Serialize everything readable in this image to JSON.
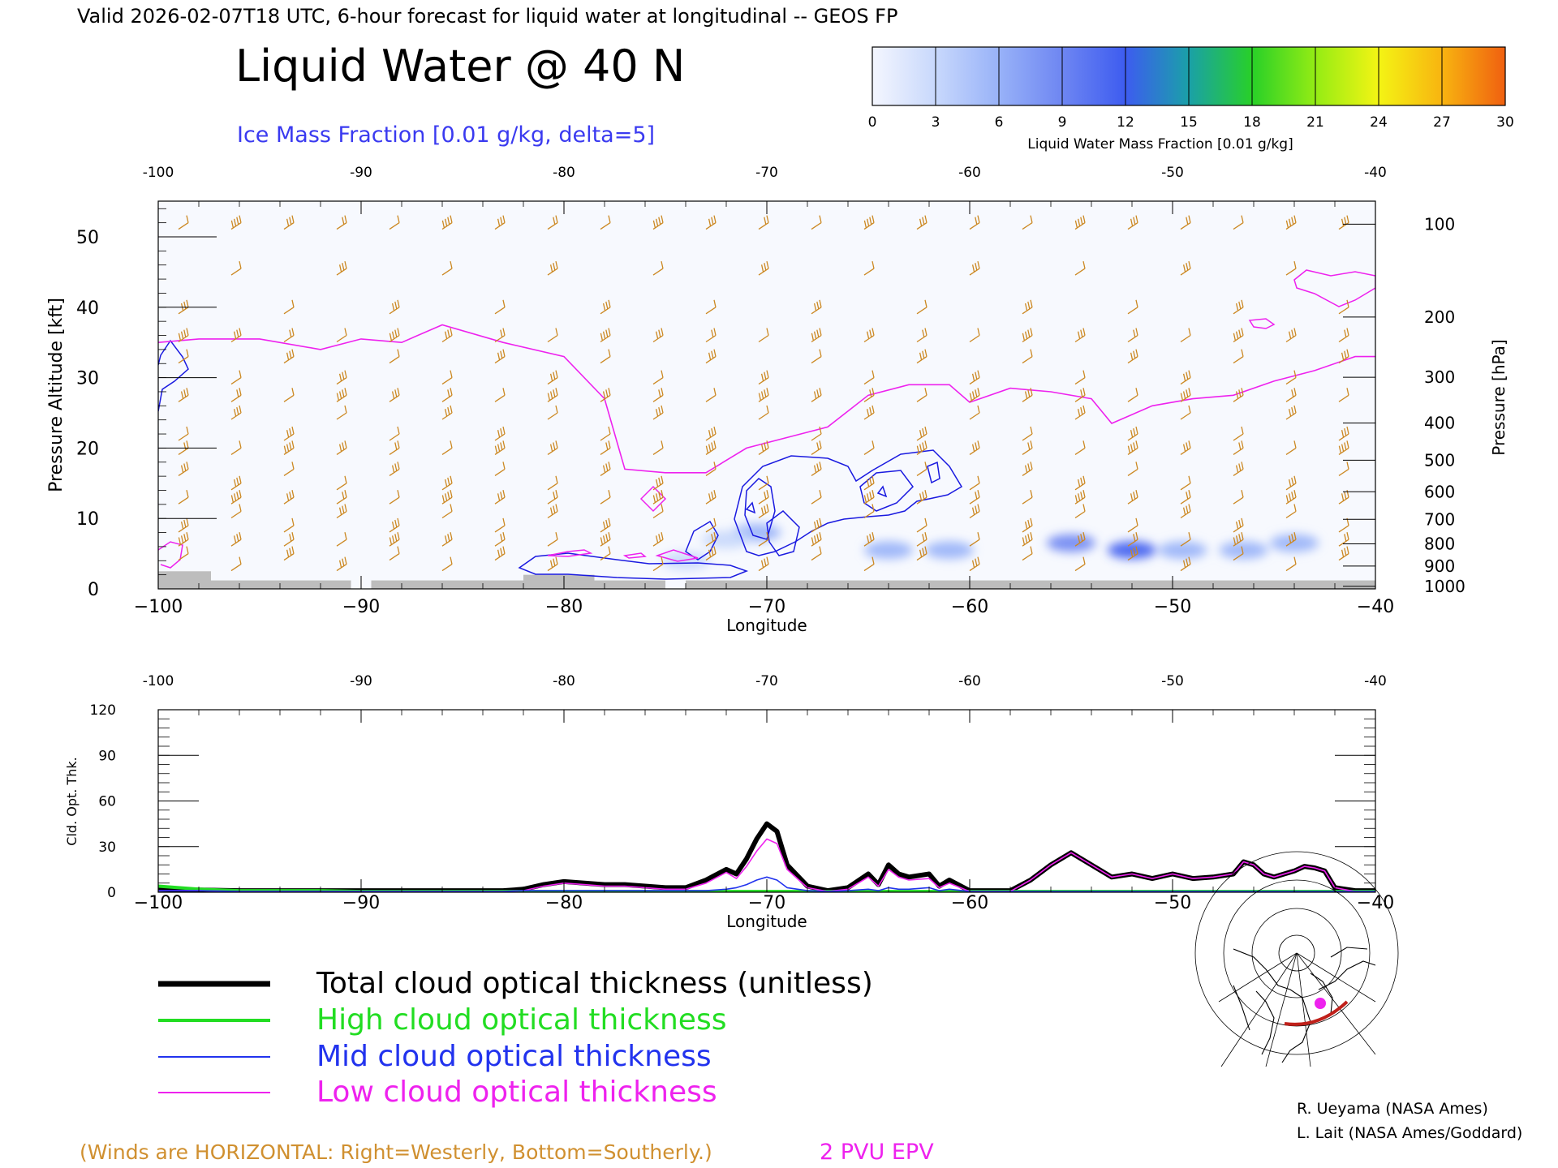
{
  "header": {
    "valid_line": "Valid 2026-02-07T18 UTC, 6-hour forecast for liquid water at longitudinal -- GEOS FP",
    "title": "Liquid Water @ 40 N",
    "subtitle": "Ice Mass Fraction [0.01 g/kg, delta=5]"
  },
  "colorbar": {
    "label": "Liquid Water Mass Fraction [0.01 g/kg]",
    "ticks": [
      "0",
      "3",
      "6",
      "9",
      "12",
      "15",
      "18",
      "21",
      "24",
      "27",
      "30"
    ],
    "colors": [
      "#f4f6fe",
      "#c8d8fc",
      "#98b2f8",
      "#6e86f2",
      "#3d5cf0",
      "#1aa0a8",
      "#28d028",
      "#94ec14",
      "#f4f414",
      "#f8b410",
      "#f06010"
    ]
  },
  "top_panel": {
    "xlabel": "Longitude",
    "ylabel_left": "Pressure Altitude [kft]",
    "ylabel_right": "Pressure [hPa]",
    "x_ticks": [
      "-100",
      "-90",
      "-80",
      "-70",
      "-60",
      "-50",
      "-40"
    ],
    "x_ticks_bottom": [
      "−100",
      "−90",
      "−80",
      "−70",
      "−60",
      "−50",
      "−40"
    ],
    "y_ticks_left": [
      "0",
      "10",
      "20",
      "30",
      "40",
      "50"
    ],
    "y_ticks_right": [
      "100",
      "200",
      "300",
      "400",
      "500",
      "600",
      "700",
      "800",
      "900",
      "1000"
    ]
  },
  "bottom_panel": {
    "xlabel": "Longitude",
    "ylabel": "Cld. Opt. Thk.",
    "x_ticks": [
      "-100",
      "-90",
      "-80",
      "-70",
      "-60",
      "-50",
      "-40"
    ],
    "x_ticks_bottom": [
      "−100",
      "−90",
      "−80",
      "−70",
      "−60",
      "−50",
      "−40"
    ],
    "y_ticks": [
      "0",
      "30",
      "60",
      "90",
      "120"
    ]
  },
  "legend": {
    "items": [
      {
        "label": "Total cloud optical thickness (unitless)",
        "color": "#000000"
      },
      {
        "label": "High cloud optical thickness",
        "color": "#22dd22"
      },
      {
        "label": "Mid cloud optical thickness",
        "color": "#2233ee"
      },
      {
        "label": "Low cloud optical thickness",
        "color": "#ee22ee"
      }
    ]
  },
  "footer": {
    "winds_note": "(Winds are HORIZONTAL: Right=Westerly, Bottom=Southerly.)",
    "epv_label": "2 PVU EPV",
    "credit1": "R. Ueyama (NASA Ames)",
    "credit2": "L. Lait (NASA Ames/Goddard)"
  },
  "chart_data": [
    {
      "type": "heatmap",
      "title": "Liquid Water @ 40 N",
      "xlabel": "Longitude",
      "ylabel": "Pressure Altitude [kft]",
      "xlim": [
        -100,
        -40
      ],
      "ylim": [
        0,
        55
      ],
      "liquid_water_patches": [
        {
          "lon": -70.5,
          "alt": 8,
          "value": 5
        },
        {
          "lon": -72,
          "alt": 7,
          "value": 3
        },
        {
          "lon": -74,
          "alt": 4,
          "value": 3
        },
        {
          "lon": -64,
          "alt": 5.5,
          "value": 6
        },
        {
          "lon": -61,
          "alt": 5.5,
          "value": 5
        },
        {
          "lon": -55,
          "alt": 6.5,
          "value": 10
        },
        {
          "lon": -52,
          "alt": 5.5,
          "value": 11
        },
        {
          "lon": -49.5,
          "alt": 5.5,
          "value": 6
        },
        {
          "lon": -46.5,
          "alt": 5.5,
          "value": 6
        },
        {
          "lon": -44,
          "alt": 6.5,
          "value": 5
        }
      ],
      "epv_2pvu_line": {
        "lon": [
          -100,
          -98,
          -95,
          -92,
          -90,
          -88,
          -86,
          -83,
          -80,
          -78,
          -77,
          -75,
          -73,
          -71,
          -69,
          -67,
          -65,
          -63,
          -61,
          -60,
          -58,
          -56,
          -54,
          -53,
          -51,
          -49,
          -47,
          -45,
          -43,
          -41,
          -40
        ],
        "alt_kft": [
          35,
          35.5,
          35.5,
          34,
          35.5,
          35,
          37.5,
          35,
          33,
          27,
          17,
          16.5,
          16.5,
          20,
          21.5,
          23,
          27.5,
          29,
          29,
          26.5,
          28.5,
          28,
          27,
          23.5,
          26,
          27,
          27.5,
          29.5,
          31,
          33,
          33
        ]
      },
      "ground_kft": [
        {
          "lon_from": -100,
          "lon_to": -97.4,
          "alt": 2.5
        },
        {
          "lon_from": -97.4,
          "lon_to": -90.5,
          "alt": 1.2
        },
        {
          "lon_from": -89.5,
          "lon_to": -82,
          "alt": 1.2
        },
        {
          "lon_from": -82,
          "lon_to": -78.5,
          "alt": 2
        },
        {
          "lon_from": -78.5,
          "lon_to": -75,
          "alt": 1.2
        },
        {
          "lon_from": -74,
          "lon_to": -40,
          "alt": 1.2
        }
      ]
    },
    {
      "type": "line",
      "xlabel": "Longitude",
      "ylabel": "Cld. Opt. Thk.",
      "xlim": [
        -100,
        -40
      ],
      "ylim": [
        0,
        120
      ],
      "x": [
        -100,
        -98,
        -96,
        -94,
        -92,
        -90,
        -88,
        -86,
        -84,
        -83,
        -82,
        -81,
        -80,
        -79,
        -78,
        -77,
        -76,
        -75,
        -74,
        -73,
        -72,
        -71.5,
        -71,
        -70.5,
        -70,
        -69.5,
        -69,
        -68,
        -67,
        -66,
        -65,
        -64.5,
        -64,
        -63.5,
        -63,
        -62,
        -61.5,
        -61,
        -60,
        -59,
        -58,
        -57,
        -56,
        -55,
        -54,
        -53,
        -52,
        -51,
        -50,
        -49,
        -48,
        -47,
        -46.5,
        -46,
        -45.5,
        -45,
        -44,
        -43.5,
        -43,
        -42.5,
        -42,
        -41,
        -40
      ],
      "series": [
        {
          "name": "Total cloud optical thickness (unitless)",
          "color": "#000000",
          "values": [
            2,
            1.5,
            1,
            1,
            1,
            1,
            1,
            1,
            1,
            1,
            2,
            5,
            7,
            6,
            5,
            5,
            4,
            3,
            3,
            8,
            15,
            12,
            22,
            35,
            45,
            40,
            18,
            4,
            1,
            3,
            12,
            5,
            18,
            12,
            10,
            12,
            4,
            8,
            1,
            1,
            1,
            8,
            18,
            26,
            18,
            10,
            12,
            9,
            12,
            9,
            10,
            12,
            20,
            18,
            12,
            10,
            14,
            17,
            16,
            14,
            3,
            1,
            1
          ]
        },
        {
          "name": "High cloud optical thickness",
          "color": "#22dd22",
          "values": [
            4,
            2,
            1,
            1,
            1,
            0.5,
            0.5,
            0.5,
            0.5,
            0.5,
            0.5,
            0.5,
            0.5,
            0.5,
            0.5,
            0.5,
            0.5,
            0.5,
            0.5,
            0.5,
            0.5,
            0.5,
            0.5,
            0.5,
            0.5,
            0.5,
            0.5,
            0.5,
            0.5,
            0.5,
            0.5,
            0.5,
            0.5,
            0.5,
            0.5,
            0.5,
            0.5,
            0.5,
            0.5,
            0.5,
            0.5,
            0.5,
            0.5,
            0.5,
            0.5,
            0.5,
            0.5,
            0.5,
            0.5,
            0.5,
            0.5,
            0.5,
            0.5,
            0.5,
            0.5,
            0.5,
            0.5,
            0.5,
            0.5,
            0.5,
            0.5,
            0.5,
            0.5
          ]
        },
        {
          "name": "Mid cloud optical thickness",
          "color": "#2233ee",
          "values": [
            1,
            1,
            0.5,
            0.5,
            0.5,
            0.5,
            0.5,
            0.5,
            0.5,
            0.5,
            1,
            1,
            1,
            1,
            1,
            1,
            1,
            1,
            1,
            1,
            2,
            3,
            5,
            8,
            10,
            8,
            3,
            1,
            0.5,
            1,
            2,
            1,
            3,
            2,
            2,
            3,
            1,
            2,
            0.5,
            0.5,
            0.5,
            0.5,
            0.5,
            0.5,
            0.5,
            0.5,
            0.5,
            0.5,
            0.5,
            0.5,
            0.5,
            0.5,
            0.5,
            0.5,
            0.5,
            0.5,
            0.5,
            0.5,
            0.5,
            0.5,
            0.5,
            0.5,
            0.5
          ]
        },
        {
          "name": "Low cloud optical thickness",
          "color": "#ee22ee",
          "values": [
            1,
            1,
            0.5,
            0.5,
            0.5,
            0.5,
            0.5,
            0.5,
            0.5,
            0.5,
            1,
            4,
            6,
            5,
            4,
            4,
            3,
            2,
            2,
            6,
            13,
            9,
            17,
            27,
            35,
            32,
            15,
            3,
            0.5,
            2,
            10,
            4,
            15,
            10,
            8,
            9,
            3,
            6,
            0.5,
            0.5,
            0.5,
            8,
            18,
            26,
            18,
            10,
            12,
            9,
            12,
            9,
            10,
            12,
            20,
            18,
            12,
            10,
            14,
            17,
            16,
            14,
            3,
            0.5,
            0.5
          ]
        }
      ]
    }
  ]
}
